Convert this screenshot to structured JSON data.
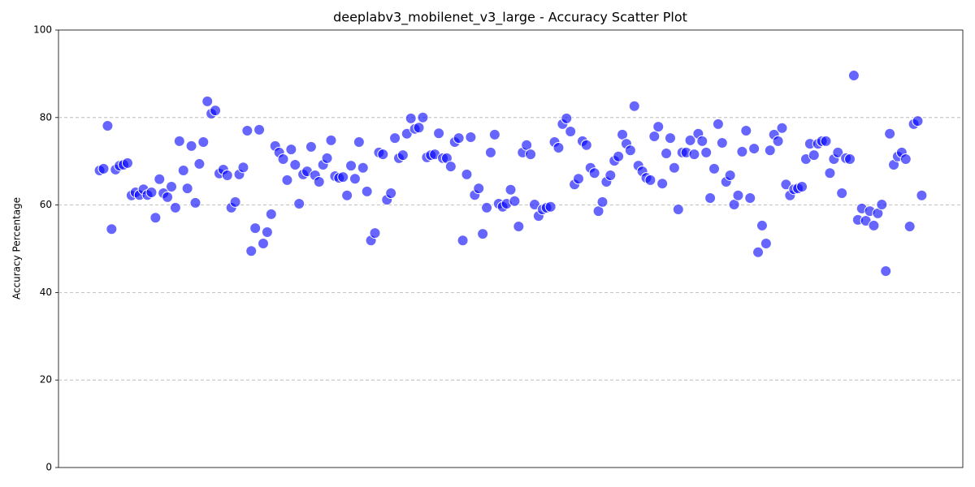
{
  "chart_data": {
    "type": "scatter",
    "title": "deeplabv3_mobilenet_v3_large - Accuracy Scatter Plot",
    "y_label": "Accuracy Percentage",
    "color": "#0000ff",
    "ylim": [
      0,
      100
    ],
    "yticks": [
      0,
      20,
      40,
      60,
      80,
      100
    ],
    "grid": true,
    "values": [
      67.9,
      68.3,
      78.1,
      54.5,
      68.1,
      69.0,
      69.2,
      69.6,
      62.2,
      62.9,
      62.3,
      63.6,
      62.3,
      62.9,
      57.1,
      65.9,
      62.7,
      61.8,
      64.2,
      59.4,
      74.6,
      67.9,
      63.8,
      73.5,
      60.5,
      69.4,
      74.4,
      83.7,
      80.9,
      81.6,
      67.2,
      68.1,
      66.8,
      59.4,
      60.7,
      67.0,
      68.6,
      77.0,
      49.5,
      54.7,
      77.2,
      51.2,
      53.8,
      57.9,
      73.5,
      72.0,
      70.5,
      65.7,
      72.7,
      69.2,
      60.3,
      67.0,
      67.7,
      73.3,
      66.8,
      65.3,
      69.2,
      70.7,
      74.8,
      66.6,
      66.2,
      66.4,
      62.2,
      69.0,
      66.0,
      74.4,
      68.5,
      63.1,
      51.9,
      53.6,
      72.0,
      71.6,
      61.2,
      62.7,
      75.3,
      70.7,
      71.4,
      76.3,
      79.8,
      77.4,
      77.7,
      80.0,
      70.9,
      71.4,
      71.6,
      76.4,
      70.7,
      70.7,
      68.8,
      74.4,
      75.3,
      51.9,
      67.0,
      75.5,
      62.3,
      63.8,
      53.4,
      59.4,
      72.0,
      76.1,
      60.3,
      59.6,
      60.3,
      63.5,
      60.9,
      55.1,
      72.0,
      73.7,
      71.6,
      60.1,
      57.5,
      59.0,
      59.4,
      59.6,
      74.4,
      73.1,
      78.5,
      79.8,
      76.8,
      64.7,
      66.0,
      74.6,
      73.7,
      68.5,
      67.3,
      58.6,
      60.7,
      65.3,
      66.8,
      70.1,
      71.1,
      76.1,
      74.0,
      72.5,
      82.6,
      69.0,
      67.7,
      66.2,
      65.7,
      75.7,
      77.9,
      64.9,
      71.8,
      75.3,
      68.5,
      59.0,
      72.0,
      72.0,
      74.8,
      71.6,
      76.3,
      74.6,
      72.0,
      61.6,
      68.3,
      78.5,
      74.2,
      65.3,
      66.8,
      60.1,
      62.2,
      72.2,
      77.0,
      61.6,
      72.9,
      49.2,
      55.3,
      51.2,
      72.5,
      76.1,
      74.6,
      77.6,
      64.7,
      62.2,
      63.6,
      63.8,
      64.2,
      70.5,
      74.0,
      71.4,
      74.0,
      74.6,
      74.6,
      67.3,
      70.5,
      72.0,
      62.7,
      70.7,
      70.5,
      89.6,
      56.6,
      59.2,
      56.4,
      58.6,
      55.3,
      58.1,
      60.1,
      44.9,
      76.3,
      69.2,
      71.1,
      72.0,
      70.5,
      55.1,
      78.5,
      79.2,
      62.2
    ]
  }
}
